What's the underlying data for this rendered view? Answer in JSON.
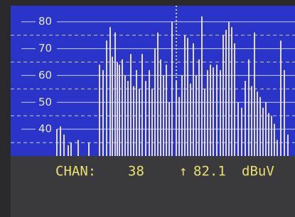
{
  "chart_data": {
    "type": "spectrum",
    "x": [
      65,
      70,
      75,
      81,
      85,
      95,
      110,
      125,
      130,
      135,
      140,
      143,
      147,
      150,
      153,
      157,
      161,
      165,
      169,
      173,
      177,
      181,
      185,
      190,
      195,
      199,
      203,
      207,
      211,
      215,
      219,
      223,
      227,
      233,
      237,
      241,
      245,
      249,
      253,
      257,
      261,
      265,
      269,
      273,
      277,
      281,
      285,
      290,
      295,
      299,
      303,
      307,
      311,
      315,
      320,
      325,
      330,
      335,
      339,
      343,
      347,
      351,
      355,
      359,
      363,
      367,
      371,
      375,
      380,
      385,
      390
    ],
    "values": [
      40,
      41,
      38,
      34,
      35,
      36,
      35,
      64,
      62,
      73,
      78,
      67,
      76,
      65,
      64,
      66,
      60,
      58,
      68,
      56,
      62,
      55,
      68,
      58,
      62,
      55,
      70,
      76,
      66,
      60,
      64,
      50,
      80,
      58,
      52,
      60,
      75,
      74,
      57,
      72,
      60,
      66,
      82,
      55,
      62,
      64,
      63,
      64,
      62,
      75,
      77,
      80,
      78,
      72,
      50,
      48,
      58,
      66,
      56,
      76,
      54,
      52,
      48,
      50,
      46,
      45,
      42,
      36,
      73,
      62,
      38
    ],
    "color": "#e4dcf4",
    "xlim": [
      0,
      400
    ],
    "ylim": [
      30,
      86
    ],
    "yticks": [
      80,
      70,
      60,
      50,
      40
    ],
    "yminor": [
      75,
      65,
      55,
      45,
      35
    ],
    "cursor": 233,
    "status": {
      "label": "CHAN:",
      "channel": 38,
      "marker": "↑",
      "level": 82.1,
      "unit": "dBuV"
    }
  }
}
